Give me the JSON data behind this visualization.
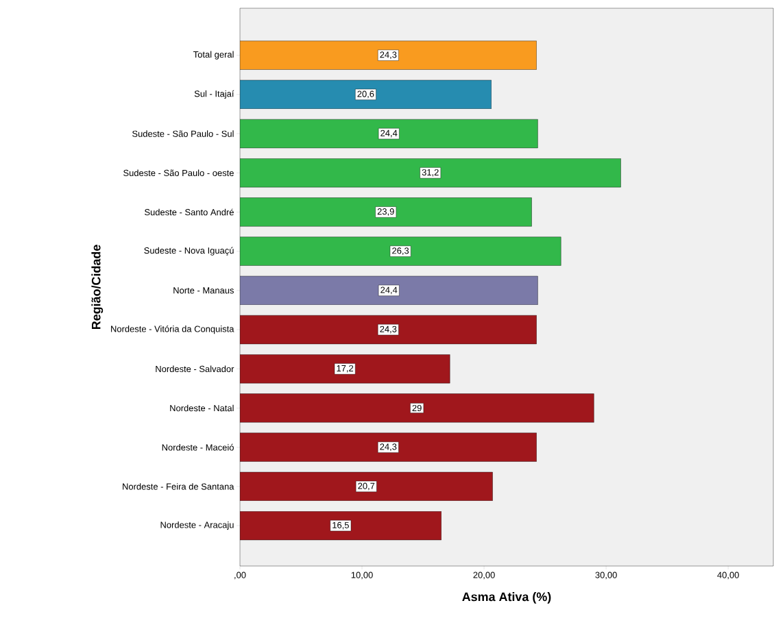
{
  "chart_data": {
    "type": "bar",
    "orientation": "horizontal",
    "categories": [
      "Total geral",
      "Sul - Itajaí",
      "Sudeste - São Paulo - Sul",
      "Sudeste - São Paulo - oeste",
      "Sudeste - Santo André",
      "Sudeste - Nova Iguaçú",
      "Norte - Manaus",
      "Nordeste - Vitória da Conquista",
      "Nordeste - Salvador",
      "Nordeste - Natal",
      "Nordeste - Maceió",
      "Nordeste - Feira de Santana",
      "Nordeste - Aracaju"
    ],
    "values": [
      24.3,
      20.6,
      24.4,
      31.2,
      23.9,
      26.3,
      24.4,
      24.3,
      17.2,
      29,
      24.3,
      20.7,
      16.5
    ],
    "value_labels": [
      "24,3",
      "20,6",
      "24,4",
      "31,2",
      "23,9",
      "26,3",
      "24,4",
      "24,3",
      "17,2",
      "29",
      "24,3",
      "20,7",
      "16,5"
    ],
    "colors": [
      "#f99b1f",
      "#268cb0",
      "#32b84a",
      "#32b84a",
      "#32b84a",
      "#32b84a",
      "#7b7aa8",
      "#a0171c",
      "#a0171c",
      "#a0171c",
      "#a0171c",
      "#a0171c",
      "#a0171c"
    ],
    "xlim": [
      0,
      43.7
    ],
    "xticks": [
      {
        "value": 0,
        "label": ",00"
      },
      {
        "value": 10,
        "label": "10,00"
      },
      {
        "value": 20,
        "label": "20,00"
      },
      {
        "value": 30,
        "label": "30,00"
      },
      {
        "value": 40,
        "label": "40,00"
      }
    ],
    "xlabel": "Asma Ativa (%)",
    "ylabel": "Região/Cidade"
  }
}
